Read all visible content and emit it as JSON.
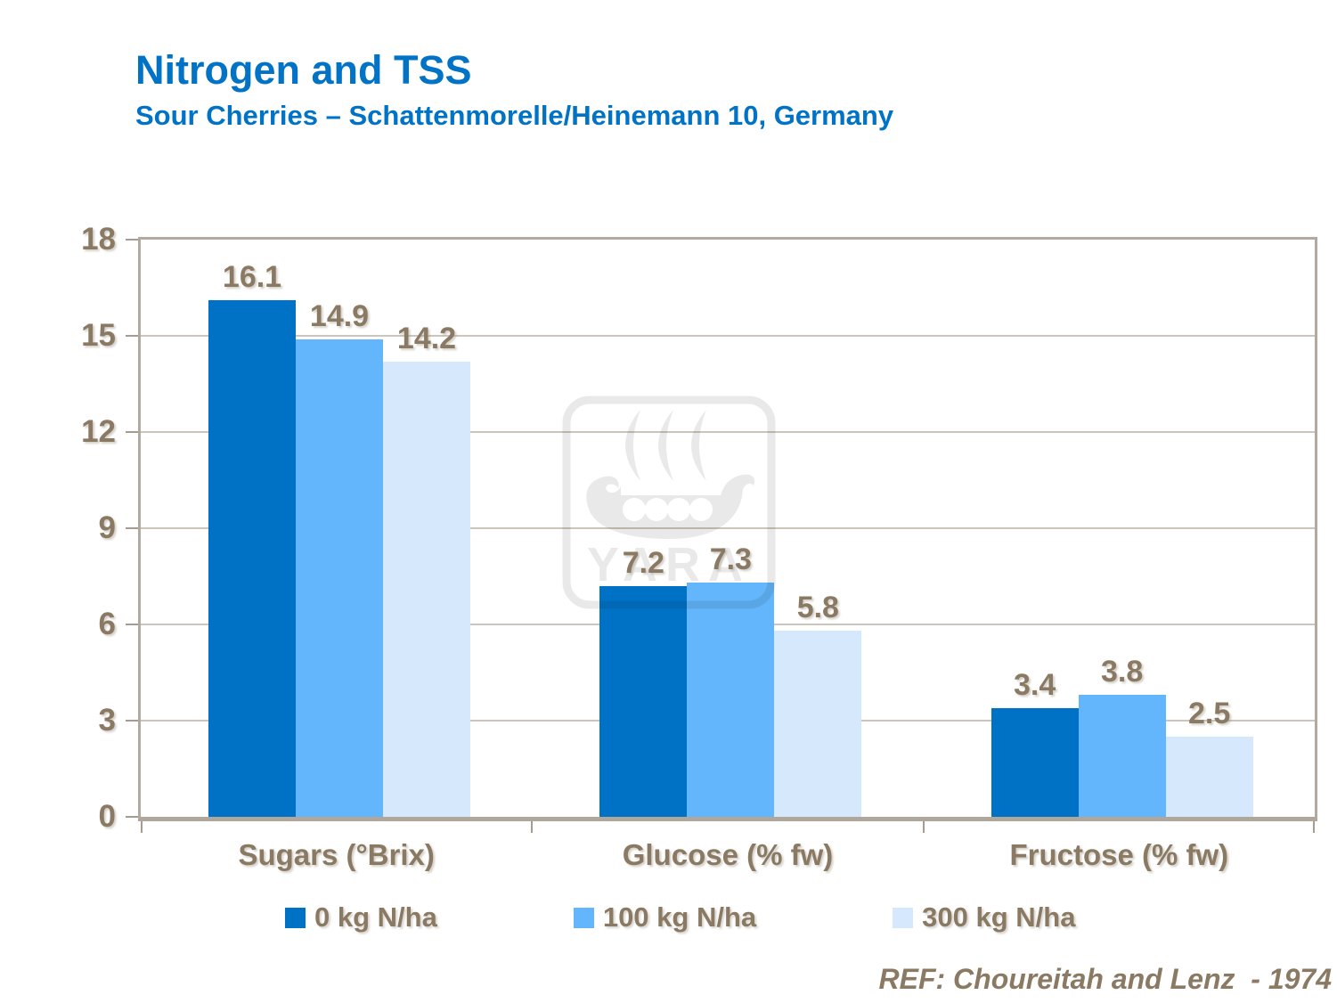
{
  "title": "Nitrogen and TSS",
  "subtitle": "Sour Cherries – Schattenmorelle/Heinemann 10, Germany",
  "footer": "REF: Choureitah and Lenz  - 1974",
  "watermark": {
    "text": "YARA"
  },
  "colors": {
    "heading_blue": "#0073C6",
    "text_brown": "#8A7A63",
    "axis_frame": "#B2A99F",
    "gridline": "#CDC5BB",
    "series": [
      "#0072C6",
      "#63B6FB",
      "#D6E9FC"
    ]
  },
  "chart_data": {
    "type": "bar",
    "categories": [
      "Sugars (°Brix)",
      "Glucose (% fw)",
      "Fructose (% fw)"
    ],
    "series": [
      {
        "name": "0 kg N/ha",
        "values": [
          16.1,
          7.2,
          3.4
        ]
      },
      {
        "name": "100 kg N/ha",
        "values": [
          14.9,
          7.3,
          3.8
        ]
      },
      {
        "name": "300 kg N/ha",
        "values": [
          14.2,
          5.8,
          2.5
        ]
      }
    ],
    "title": "Nitrogen and TSS",
    "xlabel": "",
    "ylabel": "",
    "ylim": [
      0,
      18
    ],
    "yticks": [
      0,
      3,
      6,
      9,
      12,
      15,
      18
    ],
    "grid": true,
    "legend_position": "bottom",
    "value_labels": true
  }
}
